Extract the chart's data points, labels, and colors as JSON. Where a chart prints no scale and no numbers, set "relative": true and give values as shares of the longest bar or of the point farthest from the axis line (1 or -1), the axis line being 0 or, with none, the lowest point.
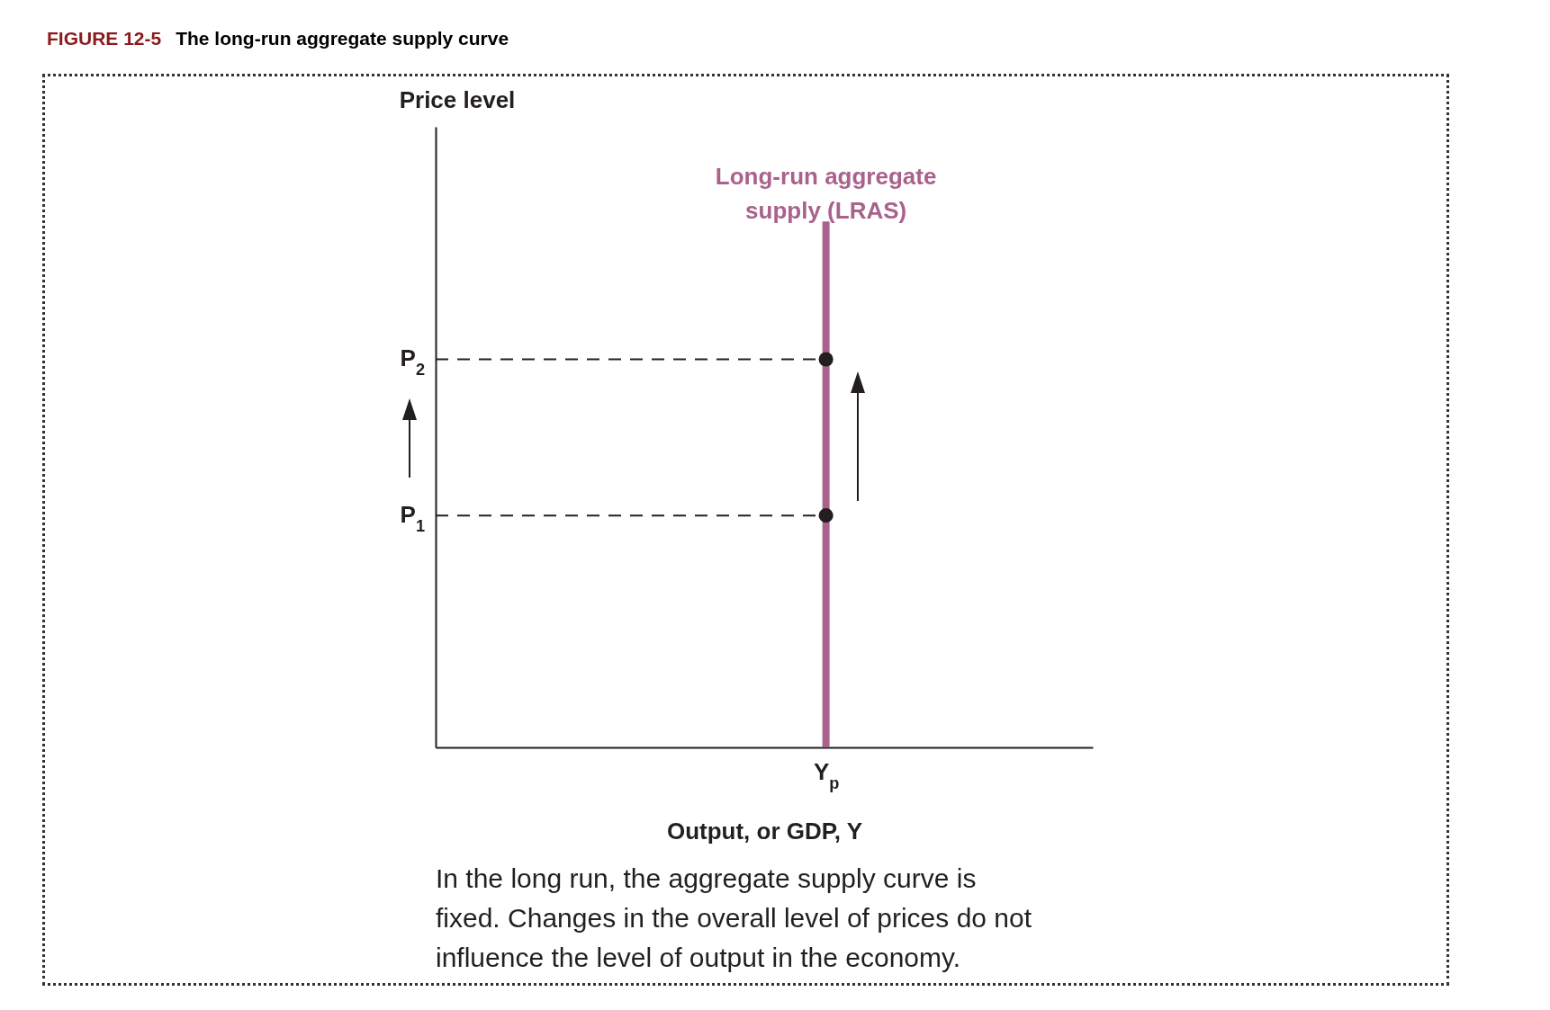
{
  "chart_data": {
    "type": "bar",
    "title": "FIGURE 12-5",
    "subtitle": "The long-run aggregate supply curve",
    "xlabel": "Output, or GDP, Y",
    "relative": true,
    "categories": [
      "Y$_{p}$"
    ],
    "series": [
      {
        "name": "Long-run aggregate supply (LRAS)",
        "color": "#a9628c",
        "values": [
          1
        ]
      },
      {
        "type": "scatter",
        "marker": "circle",
        "color": "#231f20",
        "x": [
          "Y$_{p}$",
          "Y$_{p}$"
        ],
        "values": [
          0.441,
          0.738
        ]
      }
    ],
    "ref_lines": [
      {
        "axis": "y",
        "value": 0.441,
        "label": "P$_{1}$",
        "color": "#231f20",
        "line_style": "dashed"
      },
      {
        "axis": "y",
        "value": 0.738,
        "label": "P$_{2}$",
        "color": "#231f20",
        "line_style": "dashed"
      }
    ],
    "annotations": [
      "Price level",
      "In the long run, the aggregate supply curve is fixed. Changes in the overall level of prices do not influence the level of output in the economy."
    ]
  }
}
